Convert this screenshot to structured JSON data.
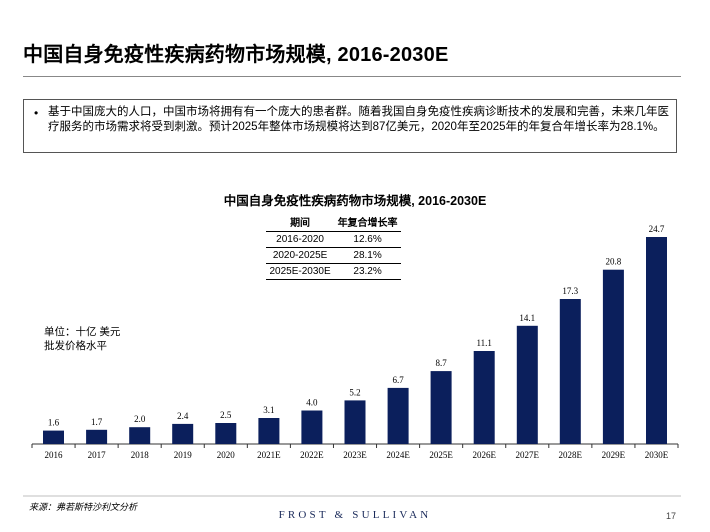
{
  "page": {
    "title": "中国自身免疫性疾病药物市场规模, 2016-2030E",
    "bullet": "基于中国庞大的人口，中国市场将拥有有一个庞大的患者群。随着我国自身免疫性疾病诊断技术的发展和完善，未来几年医疗服务的市场需求将受到刺激。预计2025年整体市场规模将达到87亿美元，2020年至2025年的年复合年增长率为28.1%。",
    "unit_line1": "单位：十亿 美元",
    "unit_line2": "批发价格水平",
    "source": "来源：弗若斯特沙利文分析",
    "brand": "FROST & SULLIVAN",
    "page_number": "17"
  },
  "table": {
    "headers": [
      "期间",
      "年复合增长率"
    ],
    "rows": [
      [
        "2016-2020",
        "12.6%"
      ],
      [
        "2020-2025E",
        "28.1%"
      ],
      [
        "2025E-2030E",
        "23.2%"
      ]
    ]
  },
  "chart_data": {
    "type": "bar",
    "title": "中国自身免疫性疾病药物市场规模, 2016-2030E",
    "xlabel": "",
    "ylabel": "",
    "categories": [
      "2016",
      "2017",
      "2018",
      "2019",
      "2020",
      "2021E",
      "2022E",
      "2023E",
      "2024E",
      "2025E",
      "2026E",
      "2027E",
      "2028E",
      "2029E",
      "2030E"
    ],
    "values": [
      1.6,
      1.7,
      2.0,
      2.4,
      2.5,
      3.1,
      4.0,
      5.2,
      6.7,
      8.7,
      11.1,
      14.1,
      17.3,
      20.8,
      24.7
    ],
    "labels": [
      "1.6",
      "1.7",
      "2.0",
      "2.4",
      "2.5",
      "3.1",
      "4.0",
      "5.2",
      "6.7",
      "8.7",
      "11.1",
      "14.1",
      "17.3",
      "20.8",
      "24.7"
    ],
    "bar_color": "#0b1f5c",
    "ylim": [
      0,
      24.7
    ],
    "grid": false,
    "legend": "none"
  }
}
